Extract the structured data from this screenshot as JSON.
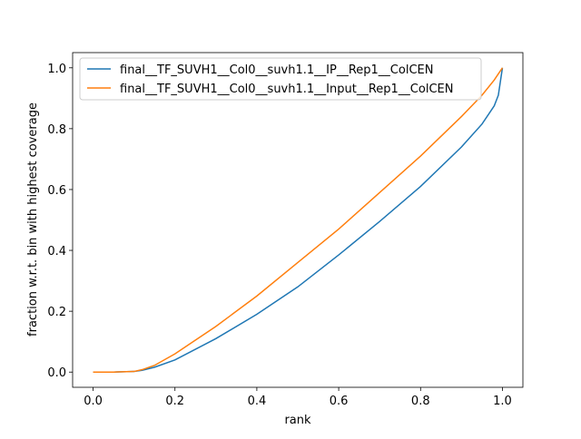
{
  "chart_data": {
    "type": "line",
    "xlabel": "rank",
    "ylabel": "fraction w.r.t. bin with highest coverage",
    "x": [
      0,
      0.05,
      0.1,
      0.12,
      0.15,
      0.2,
      0.3,
      0.4,
      0.5,
      0.6,
      0.7,
      0.8,
      0.9,
      0.95,
      0.98,
      0.99,
      1.0
    ],
    "series": [
      {
        "name": "final__TF_SUVH1__Col0__suvh1.1__IP__Rep1__ColCEN",
        "color": "#1f77b4",
        "values": [
          0,
          0,
          0.002,
          0.006,
          0.016,
          0.04,
          0.11,
          0.19,
          0.28,
          0.385,
          0.495,
          0.61,
          0.74,
          0.815,
          0.875,
          0.91,
          1.0
        ]
      },
      {
        "name": "final__TF_SUVH1__Col0__suvh1.1__Input__Rep1__ColCEN",
        "color": "#ff7f0e",
        "values": [
          0,
          0,
          0.002,
          0.008,
          0.022,
          0.06,
          0.15,
          0.25,
          0.36,
          0.47,
          0.59,
          0.71,
          0.84,
          0.91,
          0.96,
          0.98,
          1.0
        ]
      }
    ],
    "xlim": [
      -0.05,
      1.05
    ],
    "ylim": [
      -0.05,
      1.05
    ],
    "xticks": [
      {
        "value": 0,
        "label": "0.0"
      },
      0.2,
      0.4,
      0.6,
      0.8,
      {
        "value": 1,
        "label": "1.0"
      }
    ],
    "yticks": [
      {
        "value": 0,
        "label": "0.0"
      },
      0.2,
      0.4,
      0.6,
      0.8,
      {
        "value": 1,
        "label": "1.0"
      }
    ],
    "grid": false,
    "legend": "upper left"
  }
}
